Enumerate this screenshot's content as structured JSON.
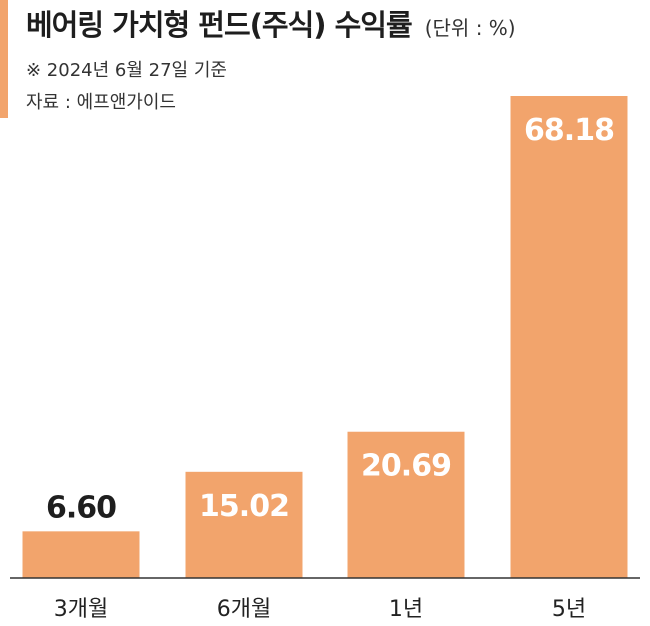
{
  "header": {
    "title": "베어링 가치형 펀드(주식) 수익률",
    "unit": "(단위 : %)",
    "note_date": "※ 2024년 6월 27일 기준",
    "note_source": "자료 : 에프앤가이드"
  },
  "colors": {
    "bar": "#F2A46C",
    "accent": "#F2A46C",
    "bar_label_dark": "#1e1e1e",
    "bar_label_light": "#ffffff",
    "axis": "#333333"
  },
  "chart_data": {
    "type": "bar",
    "title": "베어링 가치형 펀드(주식) 수익률",
    "ylabel": "",
    "xlabel": "",
    "categories": [
      "3개월",
      "6개월",
      "1년",
      "5년"
    ],
    "values": [
      6.6,
      15.02,
      20.69,
      68.18
    ],
    "value_labels": [
      "6.60",
      "15.02",
      "20.69",
      "68.18"
    ],
    "ylim": [
      0,
      70
    ],
    "grid": false,
    "legend": "none"
  }
}
